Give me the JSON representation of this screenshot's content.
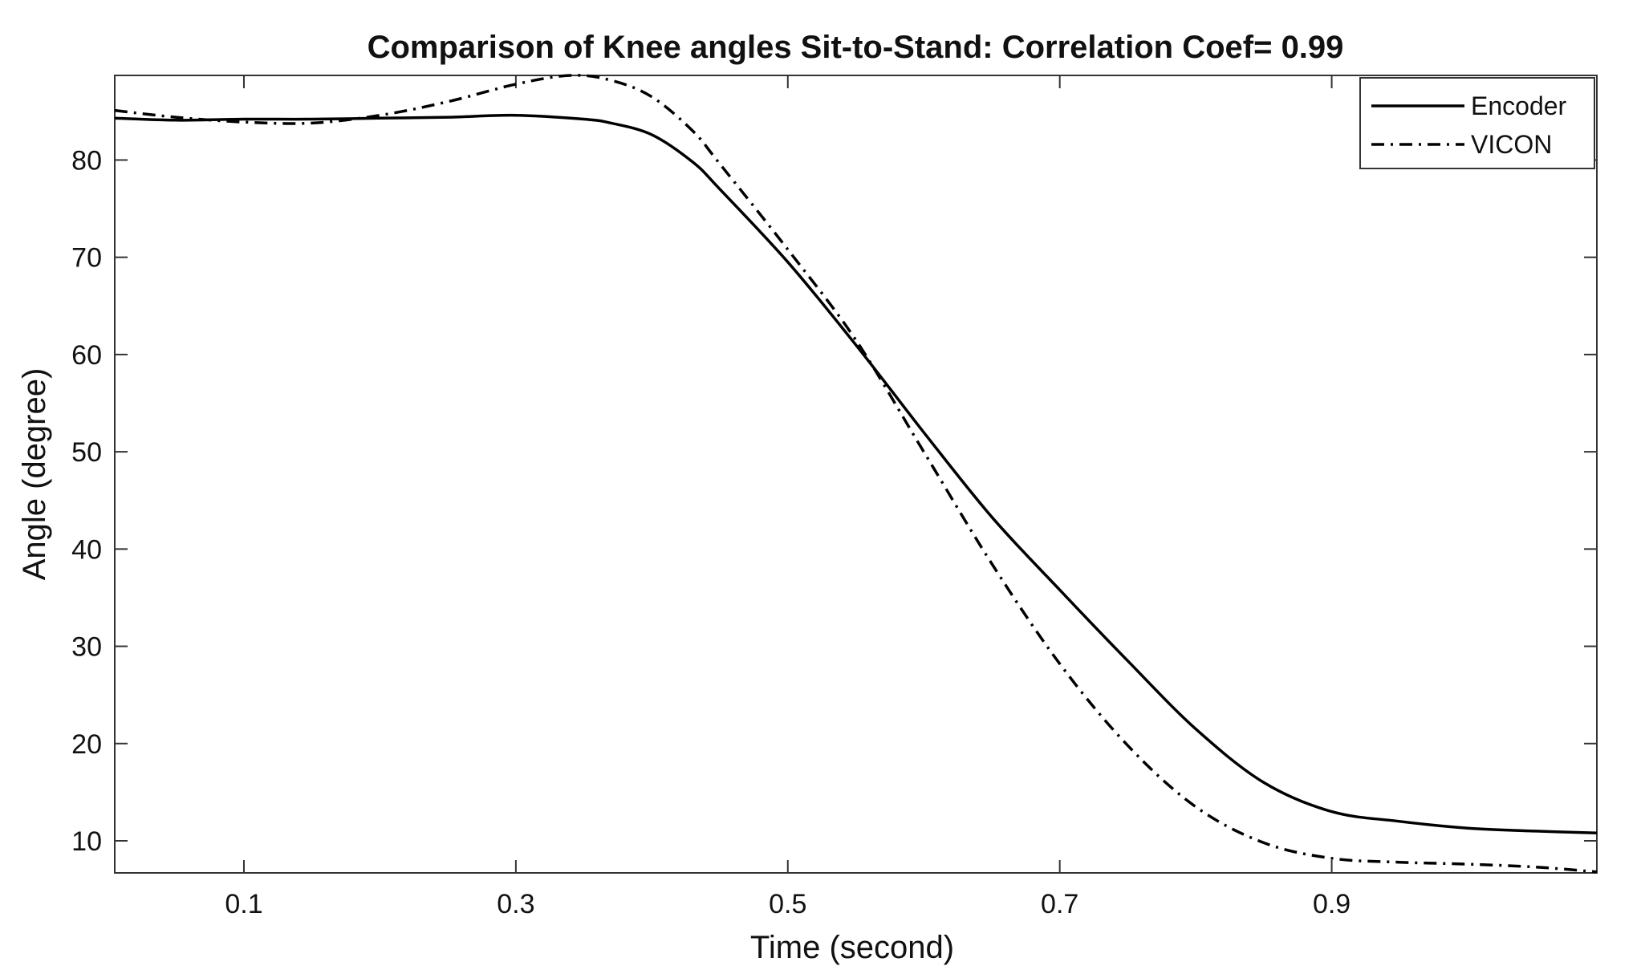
{
  "chart_data": {
    "type": "line",
    "title": "Comparison of Knee angles Sit-to-Stand: Correlation Coef= 0.99",
    "xlabel": "Time (second)",
    "ylabel": "Angle (degree)",
    "xlim": [
      0.005,
      1.095
    ],
    "ylim": [
      6.7,
      88.7
    ],
    "xticks": [
      0.1,
      0.3,
      0.5,
      0.7,
      0.9
    ],
    "xtick_labels": [
      "0.1",
      "0.3",
      "0.5",
      "0.7",
      "0.9"
    ],
    "yticks": [
      10,
      20,
      30,
      40,
      50,
      60,
      70,
      80
    ],
    "ytick_labels": [
      "10",
      "20",
      "30",
      "40",
      "50",
      "60",
      "70",
      "80"
    ],
    "grid": false,
    "legend_position": "top-right",
    "series": [
      {
        "name": "Encoder",
        "style": "solid",
        "color": "#000000",
        "x": [
          0.005,
          0.05,
          0.1,
          0.15,
          0.2,
          0.25,
          0.3,
          0.35,
          0.37,
          0.4,
          0.43,
          0.45,
          0.5,
          0.55,
          0.6,
          0.65,
          0.7,
          0.75,
          0.8,
          0.85,
          0.9,
          0.95,
          1.0,
          1.05,
          1.095
        ],
        "y": [
          84.3,
          84.1,
          84.2,
          84.2,
          84.3,
          84.4,
          84.6,
          84.2,
          83.8,
          82.6,
          79.8,
          77.0,
          69.5,
          61.0,
          52.0,
          43.3,
          35.8,
          28.5,
          21.5,
          16.0,
          13.0,
          12.0,
          11.3,
          11.0,
          10.8
        ]
      },
      {
        "name": "VICON",
        "style": "dashdot",
        "color": "#000000",
        "x": [
          0.005,
          0.05,
          0.1,
          0.15,
          0.2,
          0.25,
          0.3,
          0.34,
          0.37,
          0.4,
          0.43,
          0.45,
          0.5,
          0.55,
          0.6,
          0.65,
          0.7,
          0.75,
          0.8,
          0.85,
          0.9,
          0.95,
          1.0,
          1.05,
          1.095
        ],
        "y": [
          85.1,
          84.4,
          83.9,
          83.8,
          84.6,
          86.0,
          87.8,
          88.7,
          88.2,
          86.5,
          83.0,
          79.6,
          70.8,
          61.5,
          50.0,
          38.5,
          28.2,
          19.8,
          13.5,
          9.8,
          8.2,
          7.8,
          7.6,
          7.3,
          6.8
        ]
      }
    ]
  }
}
